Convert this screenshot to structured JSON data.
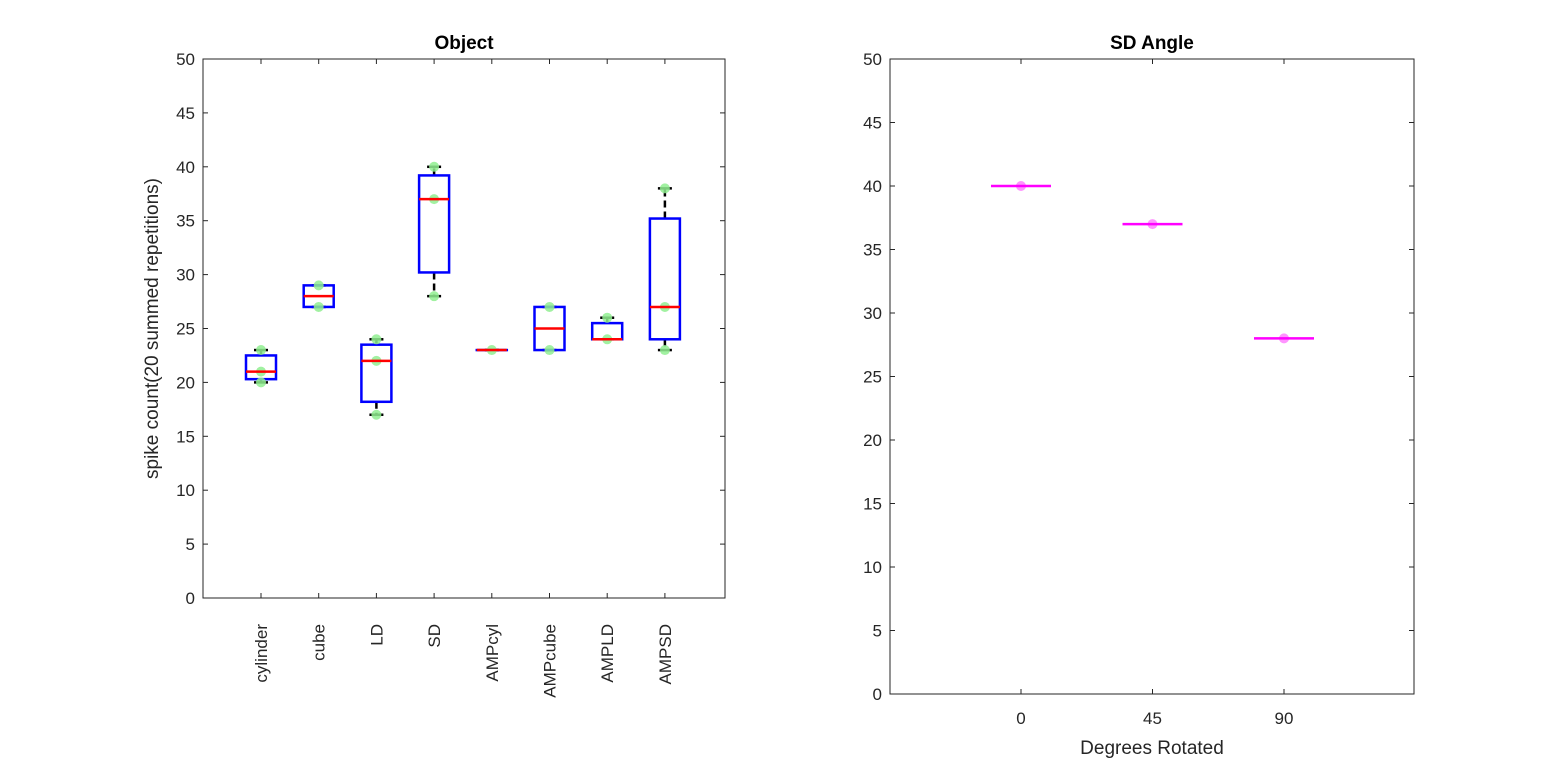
{
  "chart_data": [
    {
      "type": "box",
      "title": "Object",
      "ylabel": "spike count(20 summed repetitions)",
      "xlabel": "",
      "ylim": [
        0,
        50
      ],
      "yticks": [
        0,
        5,
        10,
        15,
        20,
        25,
        30,
        35,
        40,
        45,
        50
      ],
      "grid": false,
      "categories": [
        "cylinder",
        "cube",
        "LD",
        "SD",
        "AMPcyl",
        "AMPcube",
        "AMPLD",
        "AMPSD"
      ],
      "boxes": [
        {
          "whisker_low": 20,
          "q1": 20.3,
          "median": 21,
          "q3": 22.5,
          "whisker_high": 23,
          "points": [
            20,
            21,
            23
          ]
        },
        {
          "whisker_low": 27,
          "q1": 27,
          "median": 28,
          "q3": 29,
          "whisker_high": 29,
          "points": [
            27,
            29
          ]
        },
        {
          "whisker_low": 17,
          "q1": 18.2,
          "median": 22,
          "q3": 23.5,
          "whisker_high": 24,
          "points": [
            17,
            22,
            24
          ]
        },
        {
          "whisker_low": 28,
          "q1": 30.2,
          "median": 37,
          "q3": 39.2,
          "whisker_high": 40,
          "points": [
            28,
            37,
            40
          ]
        },
        {
          "whisker_low": 23,
          "q1": 23,
          "median": 23,
          "q3": 23,
          "whisker_high": 23,
          "points": [
            23
          ]
        },
        {
          "whisker_low": 23,
          "q1": 23,
          "median": 25,
          "q3": 27,
          "whisker_high": 27,
          "points": [
            23,
            27
          ]
        },
        {
          "whisker_low": 24,
          "q1": 24,
          "median": 24,
          "q3": 25.5,
          "whisker_high": 26,
          "points": [
            24,
            26
          ]
        },
        {
          "whisker_low": 23,
          "q1": 24,
          "median": 27,
          "q3": 35.2,
          "whisker_high": 38,
          "points": [
            23,
            27,
            38
          ]
        }
      ],
      "colors": {
        "box": "#0000ff",
        "median": "#ff0000",
        "whisker": "#000000",
        "points": "#90ee90"
      }
    },
    {
      "type": "box",
      "title": "SD Angle",
      "xlabel": "Degrees Rotated",
      "ylabel": "",
      "ylim": [
        0,
        50
      ],
      "yticks": [
        0,
        5,
        10,
        15,
        20,
        25,
        30,
        35,
        40,
        45,
        50
      ],
      "grid": false,
      "categories": [
        "0",
        "45",
        "90"
      ],
      "x": [
        0,
        45,
        90
      ],
      "values": [
        40,
        37,
        28
      ],
      "colors": {
        "median": "#ff00ff",
        "points": "#ff88ff"
      }
    }
  ]
}
